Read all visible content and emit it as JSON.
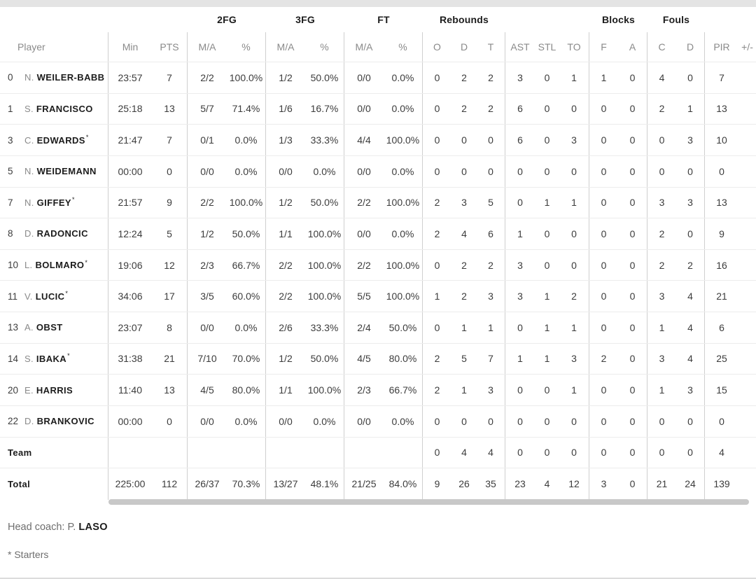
{
  "colors": {
    "top_bar": "#e4e4e4",
    "divider": "#cfcfcf",
    "row_separator": "#ececec",
    "header_gray_text": "#8a8a8a",
    "data_text": "#3c3c3c",
    "bold_text": "#1c1c1c",
    "scrollbar": "#c8c8c8"
  },
  "table": {
    "groups": {
      "fg2": "2FG",
      "fg3": "3FG",
      "ft": "FT",
      "rebounds": "Rebounds",
      "blocks": "Blocks",
      "fouls": "Fouls"
    },
    "headers": {
      "player": "Player",
      "min": "Min",
      "pts": "PTS",
      "ma": "M/A",
      "pct": "%",
      "o": "O",
      "d": "D",
      "t": "T",
      "ast": "AST",
      "stl": "STL",
      "to": "TO",
      "f": "F",
      "a": "A",
      "c": "C",
      "pir": "PIR",
      "pm": "+/-"
    },
    "rows": [
      {
        "num": "0",
        "initial": "N.",
        "name": "WEILER-BABB",
        "starter": false,
        "min": "23:57",
        "pts": "7",
        "fg2ma": "2/2",
        "fg2pct": "100.0%",
        "fg3ma": "1/2",
        "fg3pct": "50.0%",
        "ftma": "0/0",
        "ftpct": "0.0%",
        "ro": "0",
        "rd": "2",
        "rt": "2",
        "ast": "3",
        "stl": "0",
        "to": "1",
        "bf": "1",
        "ba": "0",
        "fc": "4",
        "fd": "0",
        "pir": "7",
        "pm": ""
      },
      {
        "num": "1",
        "initial": "S.",
        "name": "FRANCISCO",
        "starter": false,
        "min": "25:18",
        "pts": "13",
        "fg2ma": "5/7",
        "fg2pct": "71.4%",
        "fg3ma": "1/6",
        "fg3pct": "16.7%",
        "ftma": "0/0",
        "ftpct": "0.0%",
        "ro": "0",
        "rd": "2",
        "rt": "2",
        "ast": "6",
        "stl": "0",
        "to": "0",
        "bf": "0",
        "ba": "0",
        "fc": "2",
        "fd": "1",
        "pir": "13",
        "pm": ""
      },
      {
        "num": "3",
        "initial": "C.",
        "name": "EDWARDS",
        "starter": true,
        "min": "21:47",
        "pts": "7",
        "fg2ma": "0/1",
        "fg2pct": "0.0%",
        "fg3ma": "1/3",
        "fg3pct": "33.3%",
        "ftma": "4/4",
        "ftpct": "100.0%",
        "ro": "0",
        "rd": "0",
        "rt": "0",
        "ast": "6",
        "stl": "0",
        "to": "3",
        "bf": "0",
        "ba": "0",
        "fc": "0",
        "fd": "3",
        "pir": "10",
        "pm": ""
      },
      {
        "num": "5",
        "initial": "N.",
        "name": "WEIDEMANN",
        "starter": false,
        "min": "00:00",
        "pts": "0",
        "fg2ma": "0/0",
        "fg2pct": "0.0%",
        "fg3ma": "0/0",
        "fg3pct": "0.0%",
        "ftma": "0/0",
        "ftpct": "0.0%",
        "ro": "0",
        "rd": "0",
        "rt": "0",
        "ast": "0",
        "stl": "0",
        "to": "0",
        "bf": "0",
        "ba": "0",
        "fc": "0",
        "fd": "0",
        "pir": "0",
        "pm": ""
      },
      {
        "num": "7",
        "initial": "N.",
        "name": "GIFFEY",
        "starter": true,
        "min": "21:57",
        "pts": "9",
        "fg2ma": "2/2",
        "fg2pct": "100.0%",
        "fg3ma": "1/2",
        "fg3pct": "50.0%",
        "ftma": "2/2",
        "ftpct": "100.0%",
        "ro": "2",
        "rd": "3",
        "rt": "5",
        "ast": "0",
        "stl": "1",
        "to": "1",
        "bf": "0",
        "ba": "0",
        "fc": "3",
        "fd": "3",
        "pir": "13",
        "pm": ""
      },
      {
        "num": "8",
        "initial": "D.",
        "name": "RADONCIC",
        "starter": false,
        "min": "12:24",
        "pts": "5",
        "fg2ma": "1/2",
        "fg2pct": "50.0%",
        "fg3ma": "1/1",
        "fg3pct": "100.0%",
        "ftma": "0/0",
        "ftpct": "0.0%",
        "ro": "2",
        "rd": "4",
        "rt": "6",
        "ast": "1",
        "stl": "0",
        "to": "0",
        "bf": "0",
        "ba": "0",
        "fc": "2",
        "fd": "0",
        "pir": "9",
        "pm": ""
      },
      {
        "num": "10",
        "initial": "L.",
        "name": "BOLMARO",
        "starter": true,
        "min": "19:06",
        "pts": "12",
        "fg2ma": "2/3",
        "fg2pct": "66.7%",
        "fg3ma": "2/2",
        "fg3pct": "100.0%",
        "ftma": "2/2",
        "ftpct": "100.0%",
        "ro": "0",
        "rd": "2",
        "rt": "2",
        "ast": "3",
        "stl": "0",
        "to": "0",
        "bf": "0",
        "ba": "0",
        "fc": "2",
        "fd": "2",
        "pir": "16",
        "pm": ""
      },
      {
        "num": "11",
        "initial": "V.",
        "name": "LUCIC",
        "starter": true,
        "min": "34:06",
        "pts": "17",
        "fg2ma": "3/5",
        "fg2pct": "60.0%",
        "fg3ma": "2/2",
        "fg3pct": "100.0%",
        "ftma": "5/5",
        "ftpct": "100.0%",
        "ro": "1",
        "rd": "2",
        "rt": "3",
        "ast": "3",
        "stl": "1",
        "to": "2",
        "bf": "0",
        "ba": "0",
        "fc": "3",
        "fd": "4",
        "pir": "21",
        "pm": ""
      },
      {
        "num": "13",
        "initial": "A.",
        "name": "OBST",
        "starter": false,
        "min": "23:07",
        "pts": "8",
        "fg2ma": "0/0",
        "fg2pct": "0.0%",
        "fg3ma": "2/6",
        "fg3pct": "33.3%",
        "ftma": "2/4",
        "ftpct": "50.0%",
        "ro": "0",
        "rd": "1",
        "rt": "1",
        "ast": "0",
        "stl": "1",
        "to": "1",
        "bf": "0",
        "ba": "0",
        "fc": "1",
        "fd": "4",
        "pir": "6",
        "pm": ""
      },
      {
        "num": "14",
        "initial": "S.",
        "name": "IBAKA",
        "starter": true,
        "min": "31:38",
        "pts": "21",
        "fg2ma": "7/10",
        "fg2pct": "70.0%",
        "fg3ma": "1/2",
        "fg3pct": "50.0%",
        "ftma": "4/5",
        "ftpct": "80.0%",
        "ro": "2",
        "rd": "5",
        "rt": "7",
        "ast": "1",
        "stl": "1",
        "to": "3",
        "bf": "2",
        "ba": "0",
        "fc": "3",
        "fd": "4",
        "pir": "25",
        "pm": ""
      },
      {
        "num": "20",
        "initial": "E.",
        "name": "HARRIS",
        "starter": false,
        "min": "11:40",
        "pts": "13",
        "fg2ma": "4/5",
        "fg2pct": "80.0%",
        "fg3ma": "1/1",
        "fg3pct": "100.0%",
        "ftma": "2/3",
        "ftpct": "66.7%",
        "ro": "2",
        "rd": "1",
        "rt": "3",
        "ast": "0",
        "stl": "0",
        "to": "1",
        "bf": "0",
        "ba": "0",
        "fc": "1",
        "fd": "3",
        "pir": "15",
        "pm": ""
      },
      {
        "num": "22",
        "initial": "D.",
        "name": "BRANKOVIC",
        "starter": false,
        "min": "00:00",
        "pts": "0",
        "fg2ma": "0/0",
        "fg2pct": "0.0%",
        "fg3ma": "0/0",
        "fg3pct": "0.0%",
        "ftma": "0/0",
        "ftpct": "0.0%",
        "ro": "0",
        "rd": "0",
        "rt": "0",
        "ast": "0",
        "stl": "0",
        "to": "0",
        "bf": "0",
        "ba": "0",
        "fc": "0",
        "fd": "0",
        "pir": "0",
        "pm": ""
      },
      {
        "num": "",
        "initial": "",
        "name": "Team",
        "starter": false,
        "min": "",
        "pts": "",
        "fg2ma": "",
        "fg2pct": "",
        "fg3ma": "",
        "fg3pct": "",
        "ftma": "",
        "ftpct": "",
        "ro": "0",
        "rd": "4",
        "rt": "4",
        "ast": "0",
        "stl": "0",
        "to": "0",
        "bf": "0",
        "ba": "0",
        "fc": "0",
        "fd": "0",
        "pir": "4",
        "pm": ""
      },
      {
        "num": "",
        "initial": "",
        "name": "Total",
        "starter": false,
        "min": "225:00",
        "pts": "112",
        "fg2ma": "26/37",
        "fg2pct": "70.3%",
        "fg3ma": "13/27",
        "fg3pct": "48.1%",
        "ftma": "21/25",
        "ftpct": "84.0%",
        "ro": "9",
        "rd": "26",
        "rt": "35",
        "ast": "23",
        "stl": "4",
        "to": "12",
        "bf": "3",
        "ba": "0",
        "fc": "21",
        "fd": "24",
        "pir": "139",
        "pm": ""
      }
    ]
  },
  "footer": {
    "head_coach_label": "Head coach: P.",
    "head_coach_name": "LASO",
    "starters_note": "* Starters"
  }
}
